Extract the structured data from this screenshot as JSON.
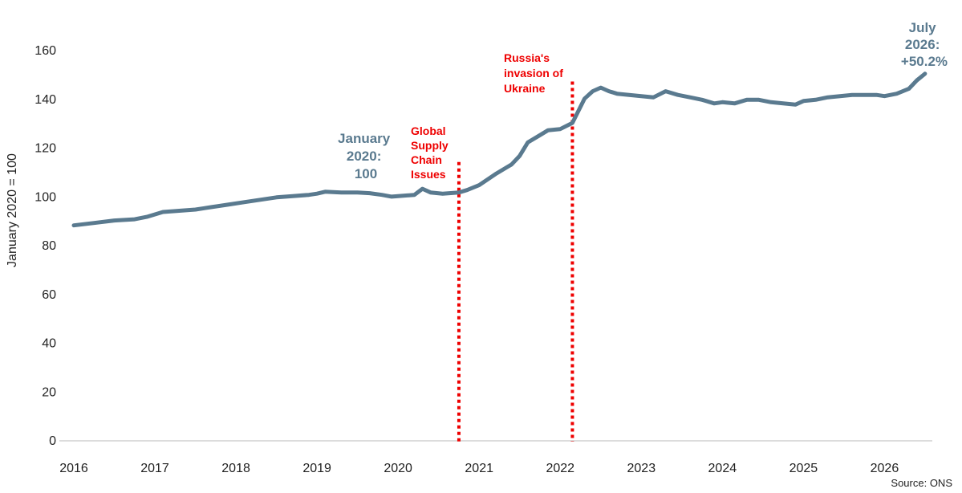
{
  "chart_data": {
    "type": "line",
    "ylabel": "January 2020 = 100",
    "ylim": [
      0,
      160
    ],
    "yticks": [
      "0",
      "20",
      "40",
      "60",
      "80",
      "100",
      "120",
      "140",
      "160"
    ],
    "xticks": [
      "2016",
      "2017",
      "2018",
      "2019",
      "2020",
      "2021",
      "2022",
      "2023",
      "2024",
      "2025",
      "2026"
    ],
    "xlim": [
      2016.0,
      2026.55
    ],
    "grid": false,
    "legend": "none",
    "series": [
      {
        "color": "#5a7a8f",
        "points": [
          [
            2016.0,
            88
          ],
          [
            2016.25,
            89
          ],
          [
            2016.5,
            90
          ],
          [
            2016.75,
            90.5
          ],
          [
            2016.9,
            91.5
          ],
          [
            2017.1,
            93.5
          ],
          [
            2017.3,
            94
          ],
          [
            2017.5,
            94.5
          ],
          [
            2017.7,
            95.5
          ],
          [
            2017.9,
            96.5
          ],
          [
            2018.1,
            97.5
          ],
          [
            2018.3,
            98.5
          ],
          [
            2018.5,
            99.5
          ],
          [
            2018.7,
            100
          ],
          [
            2018.9,
            100.5
          ],
          [
            2019.0,
            101
          ],
          [
            2019.1,
            101.8
          ],
          [
            2019.3,
            101.5
          ],
          [
            2019.5,
            101.5
          ],
          [
            2019.65,
            101.2
          ],
          [
            2019.8,
            100.5
          ],
          [
            2019.92,
            99.8
          ],
          [
            2020.0,
            100
          ],
          [
            2020.2,
            100.5
          ],
          [
            2020.3,
            103
          ],
          [
            2020.4,
            101.5
          ],
          [
            2020.55,
            101
          ],
          [
            2020.75,
            101.5
          ],
          [
            2020.85,
            102.5
          ],
          [
            2021.0,
            104.5
          ],
          [
            2021.2,
            109
          ],
          [
            2021.4,
            113
          ],
          [
            2021.5,
            116.5
          ],
          [
            2021.6,
            122
          ],
          [
            2021.75,
            125
          ],
          [
            2021.85,
            127
          ],
          [
            2022.0,
            127.5
          ],
          [
            2022.15,
            130
          ],
          [
            2022.3,
            140
          ],
          [
            2022.4,
            143
          ],
          [
            2022.5,
            144.5
          ],
          [
            2022.6,
            143
          ],
          [
            2022.7,
            142
          ],
          [
            2022.85,
            141.5
          ],
          [
            2023.0,
            141
          ],
          [
            2023.15,
            140.5
          ],
          [
            2023.3,
            143
          ],
          [
            2023.45,
            141.5
          ],
          [
            2023.6,
            140.5
          ],
          [
            2023.75,
            139.5
          ],
          [
            2023.9,
            138
          ],
          [
            2024.0,
            138.5
          ],
          [
            2024.15,
            138
          ],
          [
            2024.3,
            139.5
          ],
          [
            2024.45,
            139.5
          ],
          [
            2024.6,
            138.5
          ],
          [
            2024.75,
            138
          ],
          [
            2024.9,
            137.5
          ],
          [
            2025.0,
            139
          ],
          [
            2025.15,
            139.5
          ],
          [
            2025.3,
            140.5
          ],
          [
            2025.45,
            141
          ],
          [
            2025.6,
            141.5
          ],
          [
            2025.75,
            141.5
          ],
          [
            2025.9,
            141.5
          ],
          [
            2026.0,
            141
          ],
          [
            2026.15,
            142
          ],
          [
            2026.3,
            144
          ],
          [
            2026.4,
            147.5
          ],
          [
            2026.5,
            150.2
          ]
        ]
      }
    ],
    "annotations": {
      "january": [
        "January",
        "2020:",
        "100"
      ],
      "july": [
        "July",
        "2026:",
        "+50.2%"
      ],
      "supply": [
        "Global",
        "Supply",
        "Chain",
        "Issues"
      ],
      "russia": [
        "Russia's",
        "invasion of",
        "Ukraine"
      ]
    },
    "event_lines": [
      {
        "x": 2020.75,
        "y_top": 114,
        "color": "#ee0000"
      },
      {
        "x": 2022.15,
        "y_top": 147,
        "color": "#ee0000"
      }
    ],
    "source": "Source: ONS"
  }
}
